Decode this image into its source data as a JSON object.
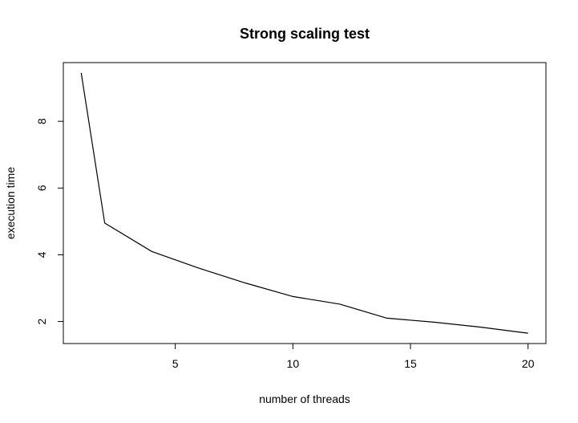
{
  "chart_data": {
    "type": "line",
    "title": "Strong scaling test",
    "xlabel": "number of threads",
    "ylabel": "execution time",
    "x": [
      1,
      2,
      4,
      6,
      8,
      10,
      12,
      14,
      16,
      18,
      20
    ],
    "series": [
      {
        "values": [
          9.45,
          4.95,
          4.1,
          3.6,
          3.15,
          2.75,
          2.52,
          2.1,
          1.98,
          1.83,
          1.65
        ]
      }
    ],
    "xticks": [
      5,
      10,
      15,
      20
    ],
    "yticks": [
      2,
      4,
      6,
      8
    ],
    "xtick_labels": [
      "5",
      "10",
      "15",
      "20"
    ],
    "ytick_labels": [
      "2",
      "4",
      "6",
      "8"
    ],
    "xlim": [
      0.24,
      20.76
    ],
    "ylim": [
      1.34,
      9.76
    ],
    "grid": false,
    "legend": "none",
    "colors": {
      "line": "#000000",
      "axis": "#000000",
      "background": "#ffffff"
    }
  }
}
